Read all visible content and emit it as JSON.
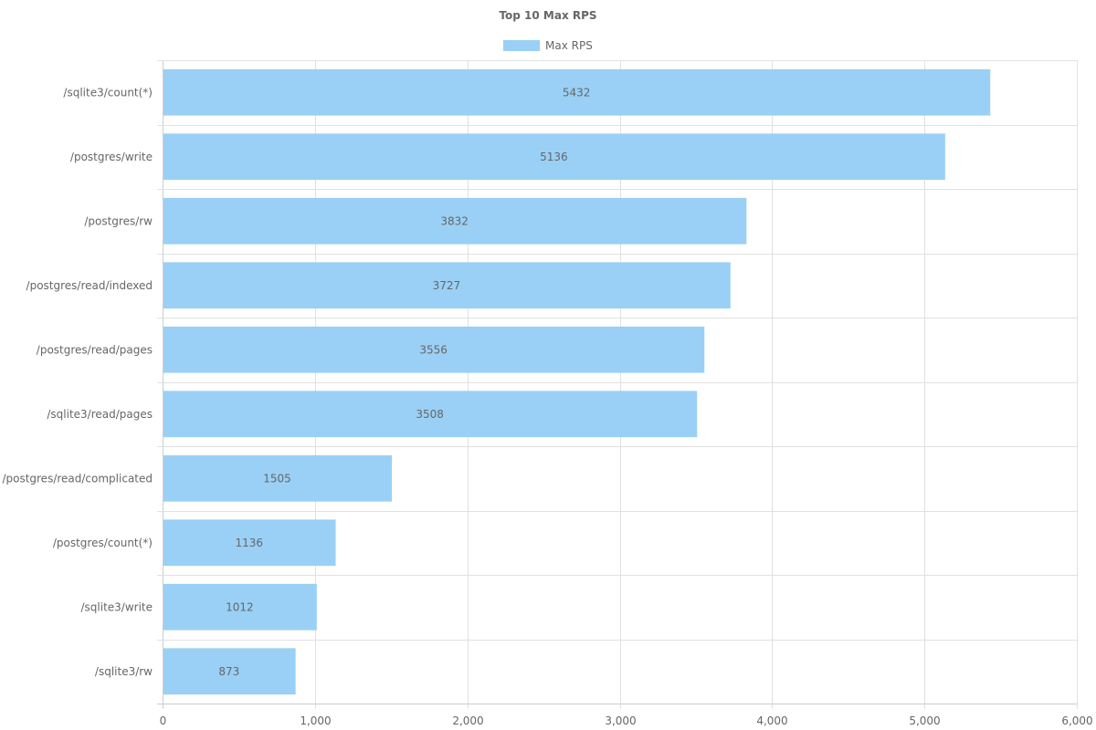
{
  "chart_data": {
    "type": "bar",
    "orientation": "horizontal",
    "title": "Top 10 Max RPS",
    "legend": [
      {
        "label": "Max RPS",
        "color": "#9ad0f5"
      }
    ],
    "legend_position": "top",
    "categories": [
      "/sqlite3/count(*)",
      "/postgres/write",
      "/postgres/rw",
      "/postgres/read/indexed",
      "/postgres/read/pages",
      "/sqlite3/read/pages",
      "/postgres/read/complicated",
      "/postgres/count(*)",
      "/sqlite3/write",
      "/sqlite3/rw"
    ],
    "series": [
      {
        "name": "Max RPS",
        "values": [
          5432,
          5136,
          3832,
          3727,
          3556,
          3508,
          1505,
          1136,
          1012,
          873
        ]
      }
    ],
    "xlim": [
      0,
      6000
    ],
    "xticks": [
      0,
      1000,
      2000,
      3000,
      4000,
      5000,
      6000
    ],
    "xtick_labels": [
      "0",
      "1,000",
      "2,000",
      "3,000",
      "4,000",
      "5,000",
      "6,000"
    ],
    "xlabel": "",
    "ylabel": "",
    "grid": true,
    "colors": {
      "bar_fill": "#9ad0f5",
      "text": "#666666",
      "grid": "#e1e1e1"
    }
  }
}
